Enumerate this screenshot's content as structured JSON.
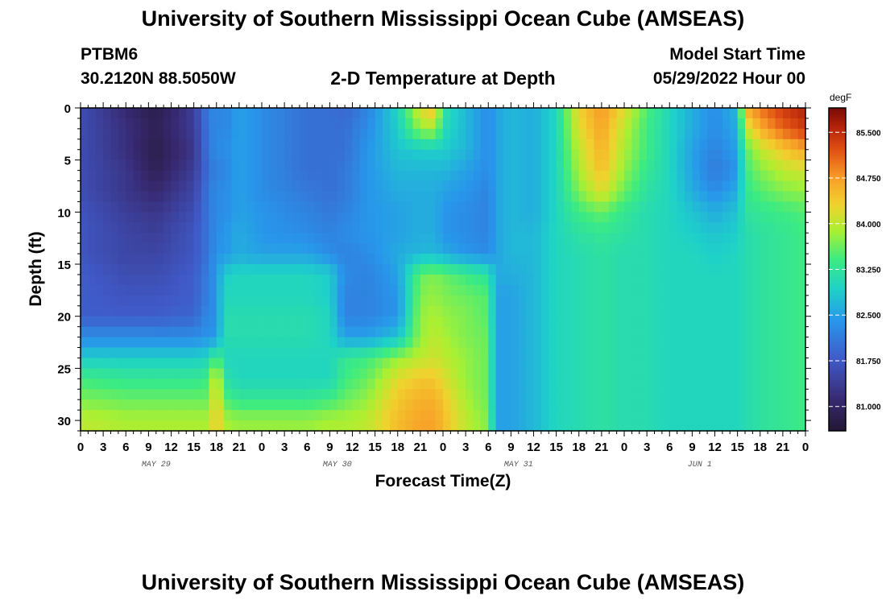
{
  "page": {
    "title_top": "University of Southern Mississippi Ocean Cube (AMSEAS)",
    "title_bottom": "University of Southern Mississippi Ocean Cube (AMSEAS)",
    "station_id": "PTBM6",
    "coordinates": "30.2120N  88.5050W",
    "plot_title": "2-D Temperature at Depth",
    "model_start_label": "Model Start Time",
    "model_start_value": "05/29/2022 Hour 00"
  },
  "chart_data": {
    "type": "heatmap",
    "title": "2-D Temperature at Depth",
    "xlabel": "Forecast Time(Z)",
    "ylabel": "Depth (ft)",
    "x_tick_labels": [
      "0",
      "3",
      "6",
      "9",
      "12",
      "15",
      "18",
      "21",
      "0",
      "3",
      "6",
      "9",
      "12",
      "15",
      "18",
      "21",
      "0",
      "3",
      "6",
      "9",
      "12",
      "15",
      "18",
      "21",
      "0",
      "3",
      "6",
      "9",
      "12",
      "15",
      "18",
      "21",
      "0"
    ],
    "x_hours_range": [
      0,
      96
    ],
    "date_labels": [
      "MAY 29",
      "MAY 30",
      "MAY 31",
      "JUN 1"
    ],
    "date_label_hours": [
      10,
      34,
      58,
      82
    ],
    "y_ticks": [
      0,
      5,
      10,
      15,
      20,
      25,
      30
    ],
    "y_range": [
      0,
      31
    ],
    "y_inverted": true,
    "colorbar": {
      "unit": "degF",
      "tick_values": [
        85.5,
        84.75,
        84.0,
        83.25,
        82.5,
        81.75,
        81.0
      ],
      "tick_labels": [
        "85.500",
        "84.750",
        "84.000",
        "83.250",
        "82.500",
        "81.750",
        "81.000"
      ],
      "range": [
        80.6,
        85.9
      ]
    },
    "depths_ft": [
      0,
      2,
      4,
      6,
      8,
      10,
      12,
      14,
      16,
      18,
      20,
      22,
      24,
      26,
      28,
      30
    ],
    "hours": [
      0,
      6,
      10,
      15,
      17,
      18,
      19,
      21,
      24,
      30,
      33,
      35,
      38,
      42,
      45,
      47,
      48,
      51,
      54,
      55,
      57,
      60,
      63,
      66,
      69,
      72,
      75,
      78,
      81,
      84,
      87,
      88,
      90,
      93,
      96
    ],
    "temperatures_degF": [
      [
        81.6,
        81.1,
        80.8,
        81.4,
        82.2,
        82.3,
        82.2,
        82.5,
        82.3,
        82.0,
        82.0,
        81.9,
        82.2,
        83.0,
        84.2,
        84.5,
        83.2,
        82.7,
        82.3,
        82.5,
        82.7,
        82.6,
        83.0,
        84.3,
        84.8,
        84.2,
        83.5,
        83.0,
        82.6,
        82.3,
        82.7,
        84.6,
        85.0,
        85.4,
        85.6
      ],
      [
        81.6,
        81.2,
        80.9,
        81.4,
        82.1,
        82.3,
        82.2,
        82.5,
        82.3,
        82.0,
        82.0,
        82.0,
        82.3,
        82.9,
        83.8,
        83.9,
        83.1,
        82.7,
        82.3,
        82.5,
        82.7,
        82.6,
        83.0,
        84.2,
        84.7,
        84.0,
        83.4,
        83.0,
        82.6,
        82.3,
        82.6,
        84.0,
        84.6,
        85.1,
        85.4
      ],
      [
        81.6,
        81.2,
        80.8,
        81.3,
        82.1,
        82.3,
        82.3,
        82.5,
        82.3,
        82.0,
        82.0,
        82.0,
        82.4,
        82.8,
        82.9,
        82.9,
        82.9,
        82.7,
        82.3,
        82.5,
        82.7,
        82.6,
        83.0,
        84.0,
        84.6,
        83.9,
        83.4,
        83.0,
        82.5,
        82.2,
        82.5,
        83.5,
        84.0,
        84.4,
        84.7
      ],
      [
        81.6,
        81.3,
        80.9,
        81.4,
        82.0,
        82.2,
        82.2,
        82.5,
        82.3,
        82.0,
        82.0,
        82.1,
        82.4,
        82.7,
        82.7,
        82.7,
        82.7,
        82.5,
        82.3,
        82.5,
        82.7,
        82.6,
        83.0,
        83.9,
        84.5,
        83.8,
        83.3,
        83.0,
        82.5,
        82.1,
        82.4,
        83.4,
        83.7,
        84.0,
        84.1
      ],
      [
        81.6,
        81.3,
        81.1,
        81.5,
        82.1,
        82.3,
        82.3,
        82.5,
        82.3,
        82.1,
        82.0,
        82.1,
        82.4,
        82.6,
        82.6,
        82.6,
        82.5,
        82.4,
        82.2,
        82.5,
        82.7,
        82.6,
        83.0,
        83.7,
        84.2,
        83.6,
        83.2,
        83.0,
        82.6,
        82.3,
        82.6,
        83.3,
        83.5,
        83.7,
        83.8
      ],
      [
        81.7,
        81.4,
        81.3,
        81.6,
        82.1,
        82.3,
        82.3,
        82.5,
        82.4,
        82.2,
        82.1,
        82.2,
        82.4,
        82.5,
        82.6,
        82.6,
        82.4,
        82.3,
        82.2,
        82.5,
        82.7,
        82.6,
        83.0,
        83.4,
        83.6,
        83.3,
        83.1,
        83.0,
        82.8,
        82.6,
        82.8,
        83.2,
        83.3,
        83.4,
        83.5
      ],
      [
        81.7,
        81.5,
        81.4,
        81.7,
        82.1,
        82.3,
        82.4,
        82.6,
        82.4,
        82.3,
        82.2,
        82.3,
        82.4,
        82.5,
        82.6,
        82.6,
        82.4,
        82.3,
        82.2,
        82.5,
        82.7,
        82.7,
        83.0,
        83.2,
        83.3,
        83.2,
        83.1,
        83.0,
        82.9,
        82.8,
        82.9,
        83.1,
        83.2,
        83.3,
        83.4
      ],
      [
        81.7,
        81.5,
        81.5,
        81.7,
        82.1,
        82.4,
        82.4,
        82.6,
        82.5,
        82.5,
        82.3,
        82.2,
        82.3,
        82.6,
        82.7,
        82.7,
        82.6,
        82.4,
        82.3,
        82.5,
        82.7,
        82.7,
        83.0,
        83.1,
        83.2,
        83.1,
        83.1,
        83.0,
        83.0,
        82.9,
        83.0,
        83.1,
        83.2,
        83.3,
        83.4
      ],
      [
        81.8,
        81.6,
        81.6,
        81.8,
        82.2,
        82.4,
        82.9,
        83.0,
        83.0,
        83.0,
        82.9,
        82.3,
        82.2,
        82.5,
        83.6,
        83.7,
        83.6,
        83.4,
        83.2,
        82.6,
        82.6,
        82.7,
        83.0,
        83.1,
        83.2,
        83.1,
        83.1,
        83.0,
        83.0,
        83.0,
        83.0,
        83.1,
        83.2,
        83.3,
        83.4
      ],
      [
        81.8,
        81.7,
        81.7,
        81.8,
        82.2,
        82.4,
        83.0,
        83.0,
        83.0,
        83.0,
        82.9,
        82.2,
        82.2,
        82.4,
        83.7,
        83.8,
        83.7,
        83.6,
        83.5,
        82.5,
        82.5,
        82.7,
        83.0,
        83.1,
        83.2,
        83.1,
        83.1,
        83.0,
        83.0,
        83.0,
        83.0,
        83.1,
        83.2,
        83.3,
        83.4
      ],
      [
        81.8,
        81.8,
        81.8,
        81.9,
        82.3,
        82.3,
        83.1,
        83.1,
        83.1,
        83.1,
        83.0,
        82.2,
        82.2,
        82.4,
        83.8,
        83.9,
        83.8,
        83.7,
        83.5,
        82.5,
        82.5,
        82.7,
        83.0,
        83.1,
        83.2,
        83.1,
        83.1,
        83.0,
        83.0,
        83.0,
        83.0,
        83.1,
        83.2,
        83.3,
        83.4
      ],
      [
        82.3,
        82.3,
        82.3,
        82.3,
        82.4,
        82.4,
        83.1,
        83.1,
        83.1,
        83.1,
        83.0,
        82.5,
        82.5,
        82.8,
        83.8,
        84.0,
        83.9,
        83.7,
        83.6,
        82.5,
        82.5,
        82.7,
        83.0,
        83.1,
        83.2,
        83.1,
        83.1,
        83.0,
        83.0,
        83.0,
        83.0,
        83.1,
        83.2,
        83.3,
        83.4
      ],
      [
        82.9,
        82.9,
        82.9,
        82.9,
        83.0,
        83.6,
        83.0,
        83.0,
        83.0,
        83.0,
        83.0,
        83.3,
        83.4,
        83.8,
        84.0,
        84.1,
        84.0,
        83.8,
        83.6,
        82.5,
        82.5,
        82.7,
        83.0,
        83.1,
        83.2,
        83.1,
        83.1,
        83.0,
        83.0,
        83.0,
        83.0,
        83.1,
        83.2,
        83.3,
        83.4
      ],
      [
        83.4,
        83.3,
        83.3,
        83.3,
        83.4,
        84.4,
        83.2,
        83.0,
        83.0,
        83.0,
        83.0,
        83.4,
        83.6,
        84.2,
        84.4,
        84.4,
        84.2,
        83.8,
        83.6,
        82.5,
        82.5,
        82.7,
        83.0,
        83.1,
        83.2,
        83.1,
        83.1,
        83.0,
        83.0,
        83.0,
        83.0,
        83.1,
        83.2,
        83.3,
        83.4
      ],
      [
        83.7,
        83.6,
        83.6,
        83.6,
        83.6,
        84.5,
        83.5,
        83.3,
        83.3,
        83.3,
        83.4,
        83.6,
        83.8,
        84.4,
        84.6,
        84.6,
        84.4,
        83.9,
        83.6,
        82.5,
        82.5,
        82.7,
        83.0,
        83.1,
        83.2,
        83.1,
        83.1,
        83.0,
        83.0,
        83.0,
        83.0,
        83.1,
        83.2,
        83.3,
        83.4
      ],
      [
        84.0,
        83.9,
        83.9,
        83.9,
        83.9,
        84.5,
        83.9,
        83.8,
        83.8,
        83.8,
        83.9,
        83.9,
        84.0,
        84.5,
        84.7,
        84.7,
        84.5,
        84.0,
        83.7,
        82.5,
        82.5,
        82.7,
        83.0,
        83.1,
        83.2,
        83.1,
        83.1,
        83.0,
        83.0,
        83.0,
        83.0,
        83.1,
        83.2,
        83.3,
        83.4
      ]
    ]
  }
}
